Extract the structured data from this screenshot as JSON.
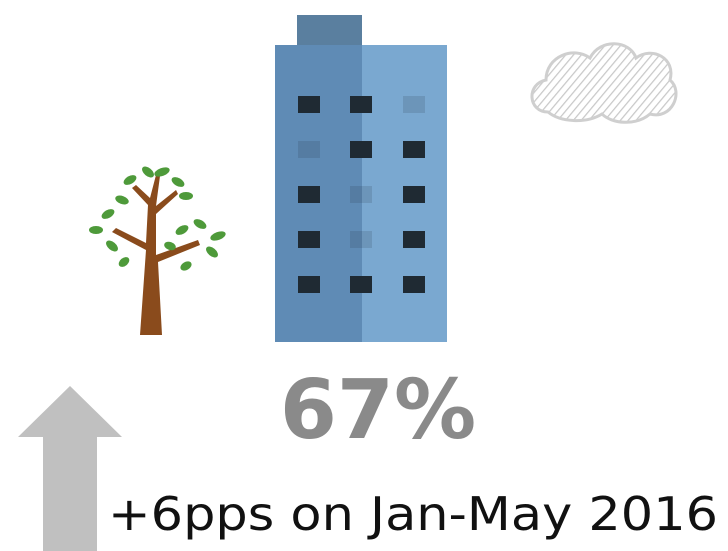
{
  "stat": {
    "value": "67%",
    "change": "+6pps on Jan-May 2016"
  }
}
